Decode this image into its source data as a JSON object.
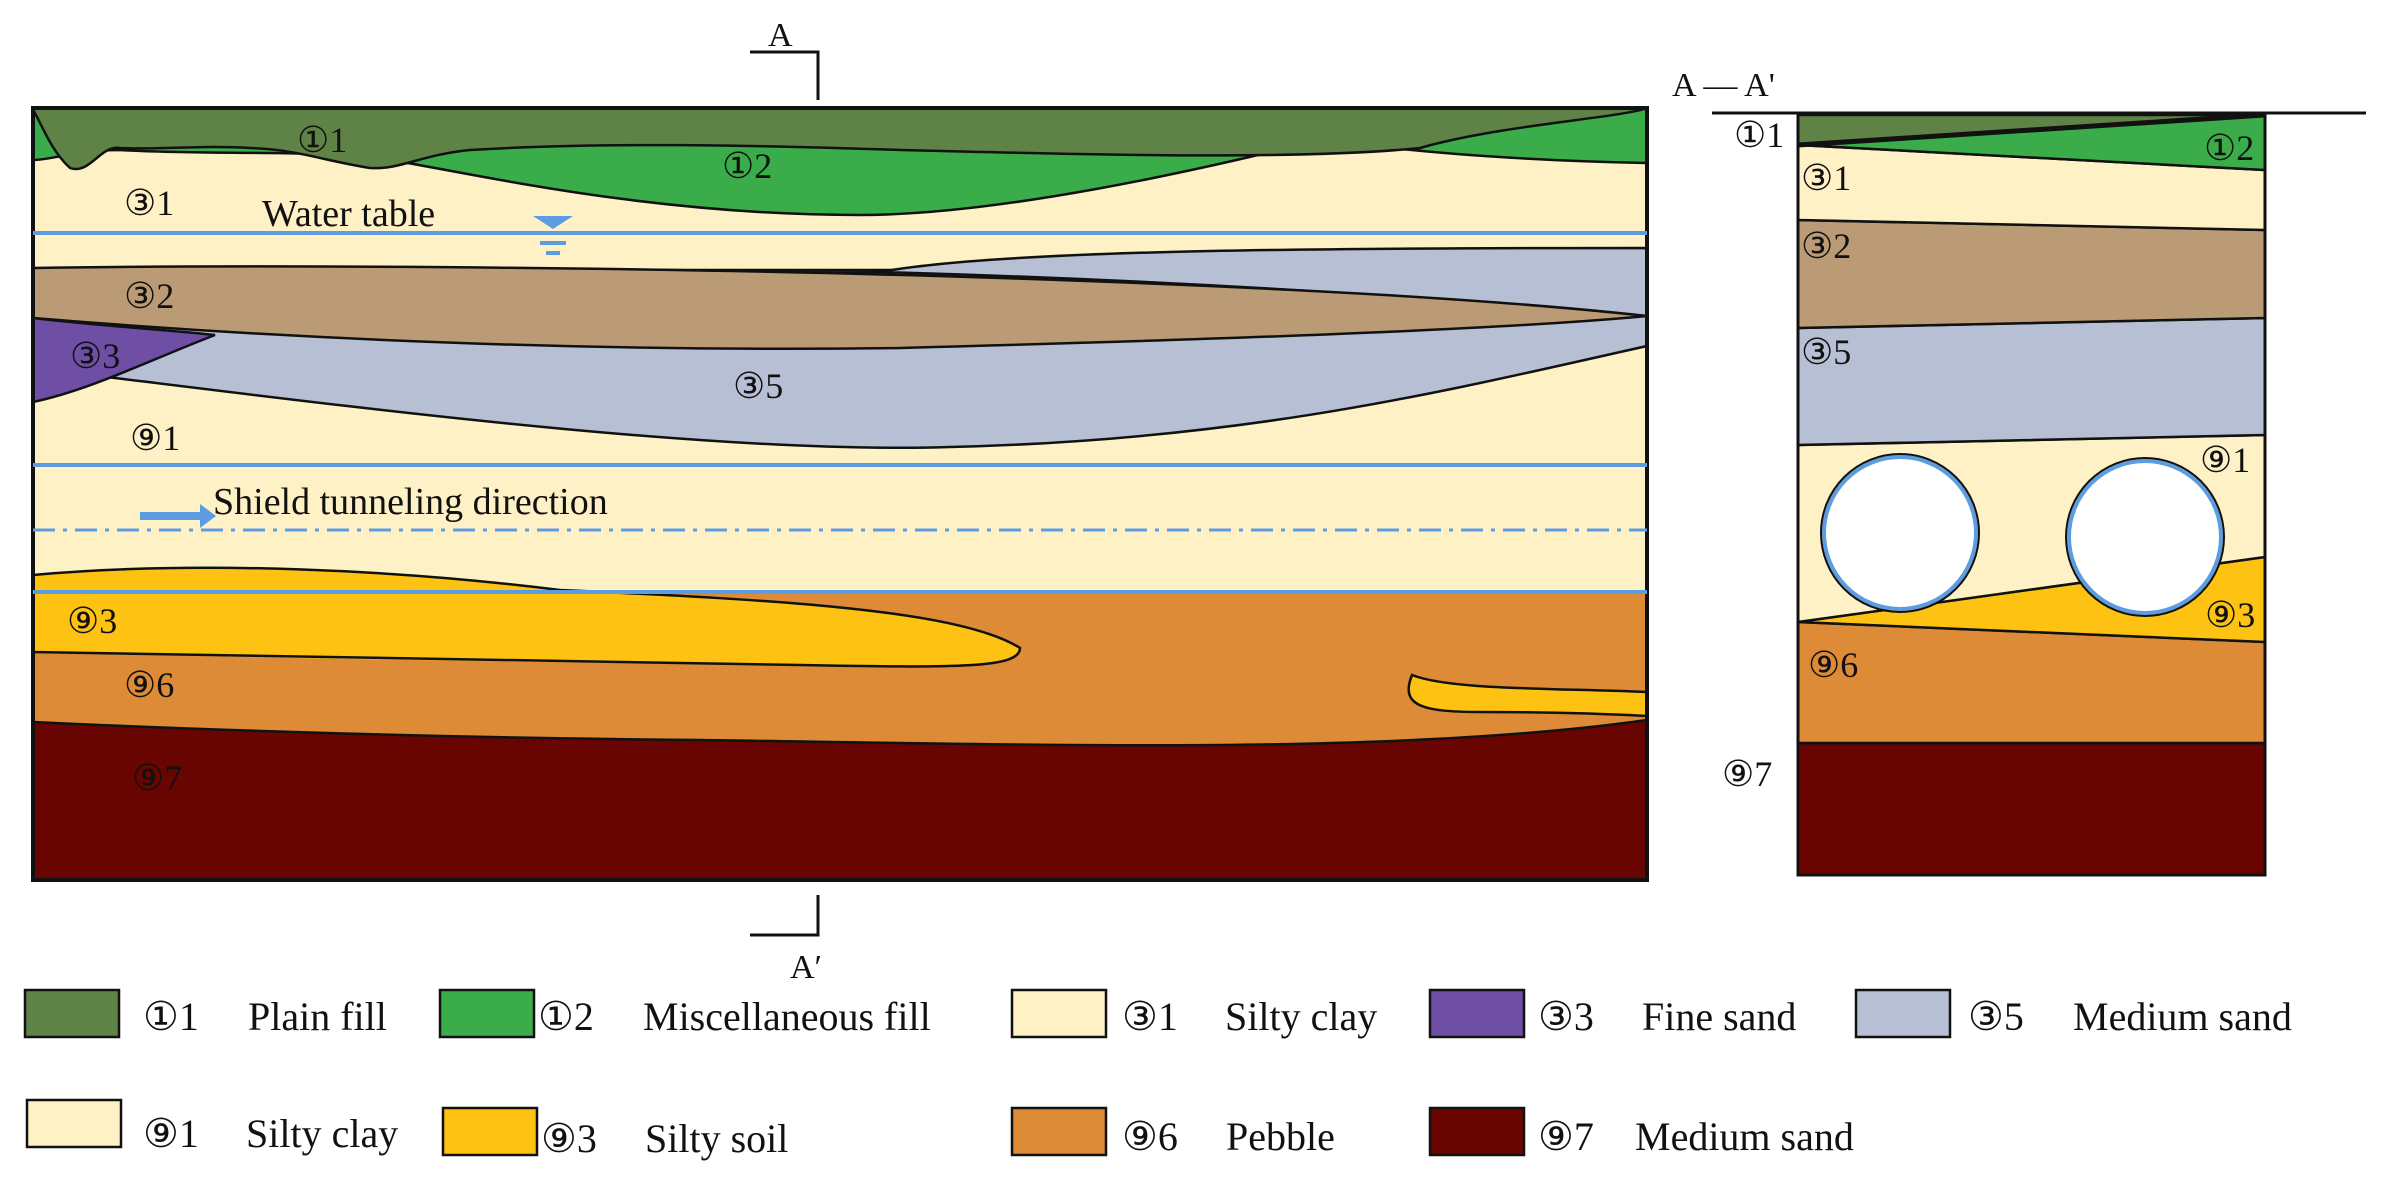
{
  "section_marks": {
    "top_mark": "A",
    "bottom_mark": "A′",
    "cross_section_title": "A — A'"
  },
  "annotations": {
    "water_table": "Water table",
    "shield_direction": "Shield tunneling direction"
  },
  "layer_labels": {
    "l1_1": "①1",
    "l1_2": "①2",
    "l3_1": "③1",
    "l3_2": "③2",
    "l3_3": "③3",
    "l3_5": "③5",
    "l9_1": "⑨1",
    "l9_3": "⑨3",
    "l9_6": "⑨6",
    "l9_7": "⑨7"
  },
  "colors": {
    "plain_fill": "#5f8346",
    "misc_fill": "#3aad4a",
    "silty_clay": "#fff1c6",
    "fine_sand": "#6f4fa6",
    "medium_sand_light": "#b7bfd4",
    "silty_clay_9": "#fff1c6",
    "silty_soil": "#fec213",
    "pebble": "#dd8b36",
    "medium_sand_dark": "#680500",
    "layer_32": "#bb9b76",
    "water_line": "#5b9de0"
  },
  "legend": [
    {
      "code": "①1",
      "name": "Plain fill",
      "color": "#5f8346"
    },
    {
      "code": "①2",
      "name": "Miscellaneous fill",
      "color": "#3aad4a"
    },
    {
      "code": "③1",
      "name": "Silty clay",
      "color": "#fff1c6"
    },
    {
      "code": "③3",
      "name": "Fine sand",
      "color": "#6f4fa6"
    },
    {
      "code": "③5",
      "name": "Medium sand",
      "color": "#b7bfd4"
    },
    {
      "code": "⑨1",
      "name": "Silty clay",
      "color": "#fff1c6"
    },
    {
      "code": "⑨3",
      "name": "Silty soil",
      "color": "#fec213"
    },
    {
      "code": "⑨6",
      "name": "Pebble",
      "color": "#dd8b36"
    },
    {
      "code": "⑨7",
      "name": "Medium sand",
      "color": "#680500"
    }
  ]
}
